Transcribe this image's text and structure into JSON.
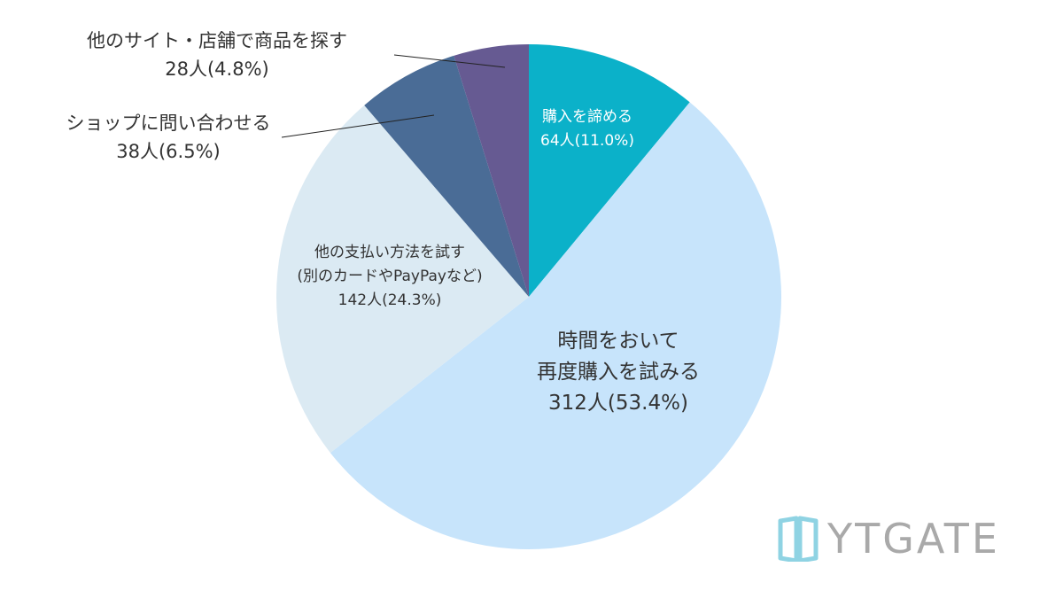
{
  "chart_data": {
    "type": "pie",
    "start_angle_deg": 0,
    "direction": "clockwise",
    "slices": [
      {
        "name": "購入を諦める",
        "lines": [
          "購入を諦める"
        ],
        "count_label": "64人(11.0%)",
        "count": 64,
        "percent": 11.0,
        "color": "#0bb1c9",
        "text_color": "#ffffff",
        "label_position": "inside"
      },
      {
        "name": "時間をおいて再度購入を試みる",
        "lines": [
          "時間をおいて",
          "再度購入を試みる"
        ],
        "count_label": "312人(53.4%)",
        "count": 312,
        "percent": 53.4,
        "color": "#c7e4fb",
        "text_color": "#333333",
        "label_position": "inside"
      },
      {
        "name": "他の支払い方法を試す(別のカードやPayPayなど)",
        "lines": [
          "他の支払い方法を試す",
          "(別のカードやPayPayなど)"
        ],
        "count_label": "142人(24.3%)",
        "count": 142,
        "percent": 24.3,
        "color": "#dbeaf3",
        "text_color": "#333333",
        "label_position": "inside"
      },
      {
        "name": "ショップに問い合わせる",
        "lines": [
          "ショップに問い合わせる"
        ],
        "count_label": "38人(6.5%)",
        "count": 38,
        "percent": 6.5,
        "color": "#4a6c96",
        "text_color": "#333333",
        "label_position": "outside"
      },
      {
        "name": "他のサイト・店舗で商品を探す",
        "lines": [
          "他のサイト・店舗で商品を探す"
        ],
        "count_label": "28人(4.8%)",
        "count": 28,
        "percent": 4.8,
        "color": "#665a92",
        "text_color": "#333333",
        "label_position": "outside"
      }
    ],
    "legend": "none"
  },
  "logo": {
    "text": "YTGATE",
    "color": "#a9a9a9",
    "mark_color": "#8fd3e3"
  }
}
